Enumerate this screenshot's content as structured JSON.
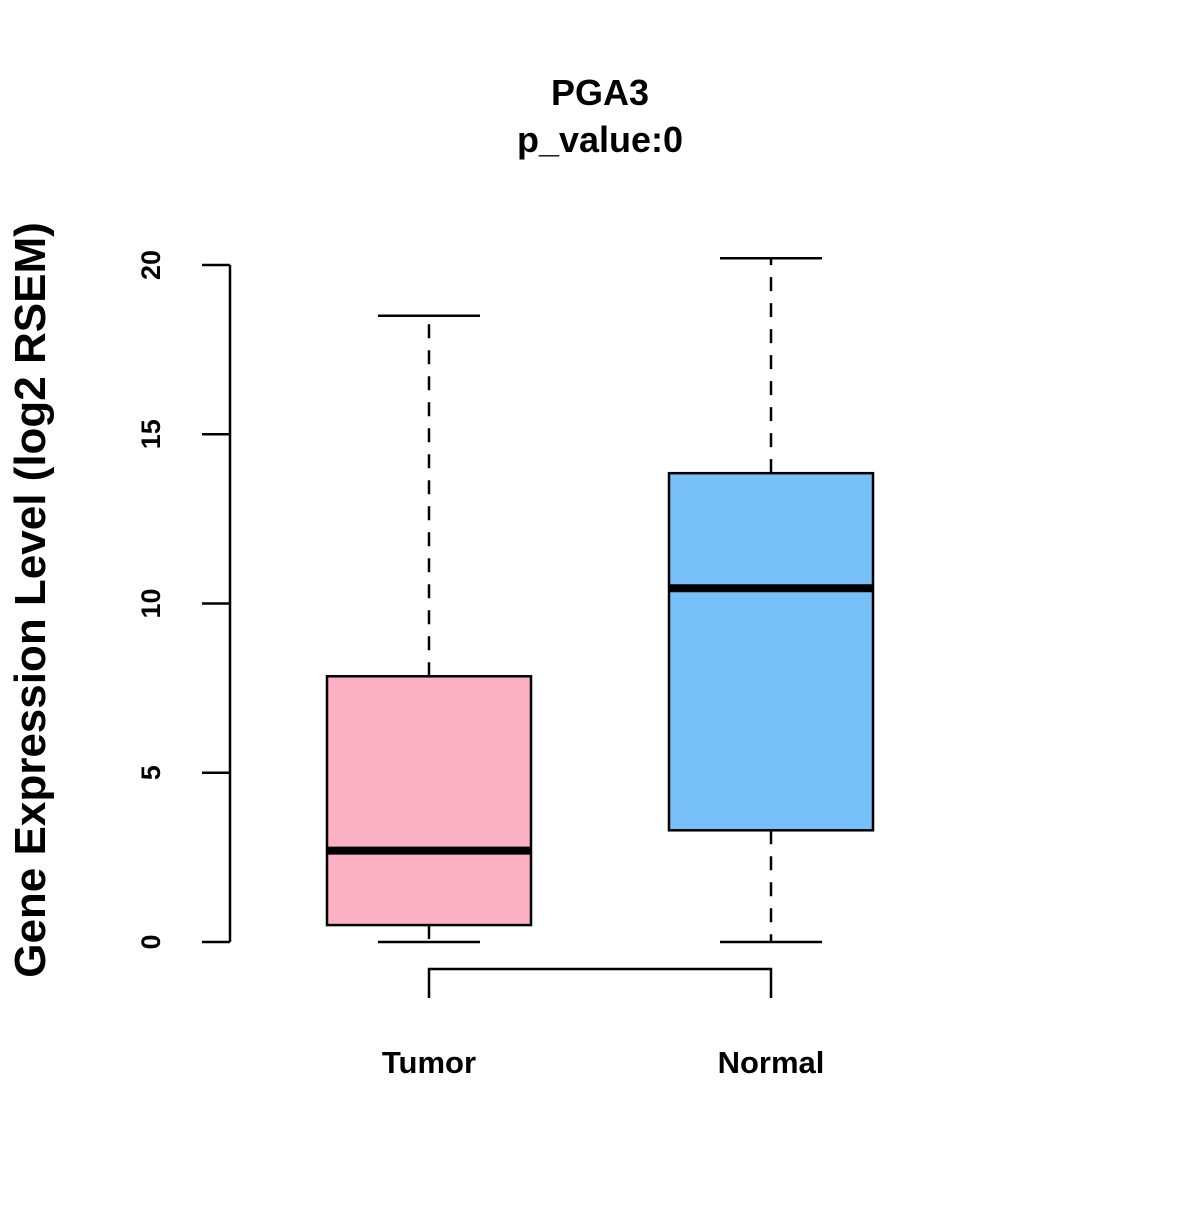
{
  "chart_data": {
    "type": "boxplot",
    "title": "PGA3",
    "subtitle": "p_value:0",
    "xlabel": "",
    "ylabel": "Gene Expression Level (log2 RSEM)",
    "ylim": [
      0,
      20
    ],
    "yticks": [
      0,
      5,
      10,
      15,
      20
    ],
    "ytick_labels": [
      "0",
      "5",
      "10",
      "15",
      "20"
    ],
    "grid": false,
    "categories": [
      "Tumor",
      "Normal"
    ],
    "boxes": [
      {
        "name": "Tumor",
        "min": 0,
        "q1": 0.5,
        "median": 2.7,
        "q3": 7.85,
        "max": 18.5,
        "color": "#FBB1C3"
      },
      {
        "name": "Normal",
        "min": 0,
        "q1": 3.3,
        "median": 10.45,
        "q3": 13.85,
        "max": 20.2,
        "color": "#78C1F8"
      }
    ],
    "comparison_bracket": {
      "from": "Tumor",
      "to": "Normal"
    }
  }
}
